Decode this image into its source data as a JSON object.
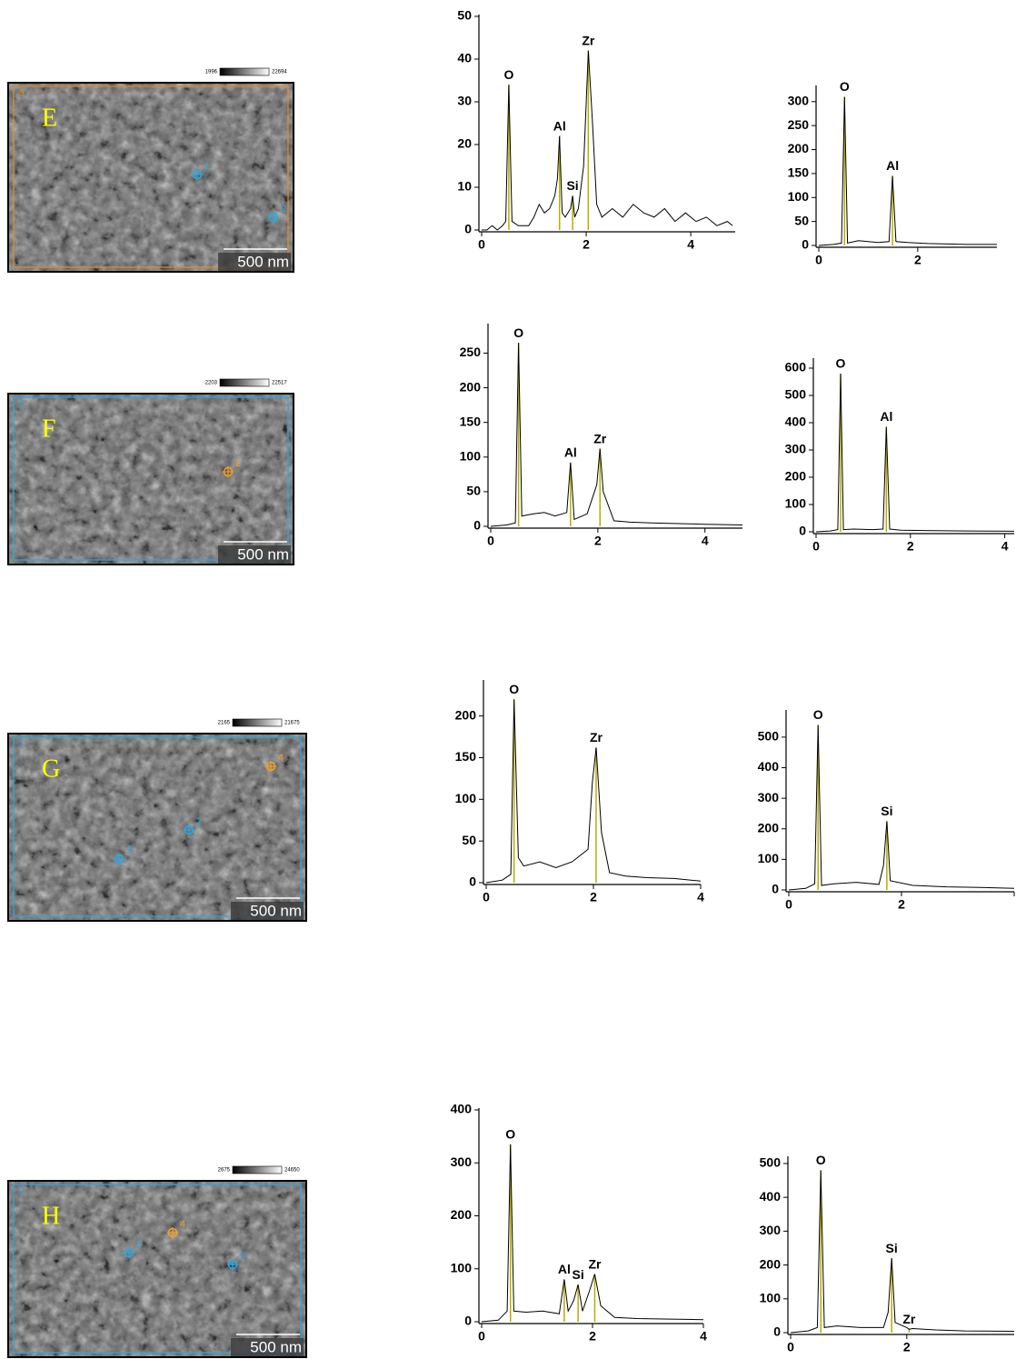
{
  "images": [
    {
      "letter": "E",
      "region": "3",
      "border": "#e0902a",
      "colorbar": [
        1996,
        22694
      ],
      "scale": "500 nm",
      "points": [
        {
          "label": "1",
          "color": "#2aa8e0"
        },
        {
          "label": "2",
          "color": "#2aa8e0"
        }
      ]
    },
    {
      "letter": "F",
      "region": "1",
      "border": "#2aa8e0",
      "colorbar": [
        2203,
        22517
      ],
      "scale": "500 nm",
      "points": [
        {
          "label": "2",
          "color": "#f0a020"
        }
      ]
    },
    {
      "letter": "G",
      "region": "1",
      "border": "#2aa8e0",
      "colorbar": [
        2165,
        21675
      ],
      "scale": "500 nm",
      "points": [
        {
          "label": "4",
          "color": "#f0a020"
        },
        {
          "label": "2",
          "color": "#2aa8e0"
        },
        {
          "label": "3",
          "color": "#2aa8e0"
        }
      ]
    },
    {
      "letter": "H",
      "region": "1",
      "border": "#2aa8e0",
      "colorbar": [
        2675,
        24650
      ],
      "scale": "500 nm",
      "points": [
        {
          "label": "2",
          "color": "#2aa8e0"
        },
        {
          "label": "4",
          "color": "#f0a020"
        },
        {
          "label": "3",
          "color": "#2aa8e0"
        }
      ]
    }
  ],
  "chart_data": [
    {
      "type": "line",
      "color": "#000000",
      "peak_color": "#b5ad00",
      "x": [
        0,
        0.1,
        0.2,
        0.3,
        0.4,
        0.46,
        0.52,
        0.58,
        0.7,
        0.9,
        1.0,
        1.1,
        1.2,
        1.3,
        1.4,
        1.45,
        1.49,
        1.54,
        1.6,
        1.7,
        1.74,
        1.78,
        1.85,
        1.95,
        2.04,
        2.12,
        2.2,
        2.3,
        2.5,
        2.7,
        2.9,
        3.1,
        3.3,
        3.5,
        3.7,
        3.9,
        4.1,
        4.3,
        4.5,
        4.7,
        4.8
      ],
      "values": [
        0,
        0,
        1,
        0,
        1,
        2,
        34,
        2,
        1,
        1,
        3,
        6,
        4,
        5,
        8,
        12,
        22,
        4,
        3,
        5,
        8,
        3,
        5,
        15,
        42,
        25,
        6,
        3,
        5,
        3,
        6,
        4,
        3,
        5,
        2,
        4,
        2,
        3,
        1,
        2,
        1
      ],
      "xlim": [
        0,
        4.85
      ],
      "ylim": [
        0,
        50
      ],
      "xticks": [
        0,
        2,
        4
      ],
      "yticks": [
        0,
        10,
        20,
        30,
        40,
        50
      ],
      "peaks": [
        {
          "label": "O",
          "x": 0.52,
          "value": 34
        },
        {
          "label": "Al",
          "x": 1.49,
          "value": 22
        },
        {
          "label": "Si",
          "x": 1.74,
          "value": 8
        },
        {
          "label": "Zr",
          "x": 2.04,
          "value": 42
        }
      ]
    },
    {
      "type": "line",
      "color": "#000000",
      "peak_color": "#b5ad00",
      "x": [
        0,
        0.3,
        0.46,
        0.52,
        0.58,
        0.8,
        1.2,
        1.42,
        1.49,
        1.56,
        1.8,
        2.2,
        2.6,
        3.0,
        3.6
      ],
      "values": [
        0,
        2,
        5,
        310,
        5,
        10,
        6,
        8,
        145,
        8,
        6,
        4,
        3,
        2,
        2
      ],
      "xlim": [
        0,
        3.6
      ],
      "ylim": [
        0,
        330
      ],
      "xticks": [
        0,
        2
      ],
      "yticks": [
        0,
        50,
        100,
        150,
        200,
        250,
        300
      ],
      "peaks": [
        {
          "label": "O",
          "x": 0.52,
          "value": 310
        },
        {
          "label": "Al",
          "x": 1.49,
          "value": 145
        }
      ]
    },
    {
      "type": "line",
      "color": "#000000",
      "peak_color": "#b5ad00",
      "x": [
        0,
        0.3,
        0.46,
        0.52,
        0.58,
        0.8,
        1.0,
        1.2,
        1.42,
        1.49,
        1.56,
        1.8,
        1.98,
        2.04,
        2.1,
        2.3,
        2.6,
        3.0,
        3.5,
        4.0,
        4.7
      ],
      "values": [
        0,
        2,
        5,
        265,
        15,
        18,
        20,
        15,
        20,
        92,
        10,
        18,
        60,
        112,
        50,
        8,
        6,
        5,
        4,
        3,
        2
      ],
      "xlim": [
        0,
        4.7
      ],
      "ylim": [
        0,
        290
      ],
      "xticks": [
        0,
        2,
        4
      ],
      "yticks": [
        0,
        50,
        100,
        150,
        200,
        250
      ],
      "peaks": [
        {
          "label": "O",
          "x": 0.52,
          "value": 265
        },
        {
          "label": "Al",
          "x": 1.49,
          "value": 92
        },
        {
          "label": "Zr",
          "x": 2.04,
          "value": 112
        }
      ]
    },
    {
      "type": "line",
      "color": "#000000",
      "peak_color": "#b5ad00",
      "x": [
        0,
        0.3,
        0.46,
        0.52,
        0.58,
        0.8,
        1.2,
        1.42,
        1.49,
        1.56,
        1.8,
        2.5,
        3.2,
        4.2
      ],
      "values": [
        0,
        3,
        8,
        580,
        8,
        10,
        8,
        10,
        385,
        10,
        6,
        4,
        3,
        2
      ],
      "xlim": [
        0,
        4.2
      ],
      "ylim": [
        0,
        630
      ],
      "xticks": [
        0,
        2,
        4
      ],
      "yticks": [
        0,
        100,
        200,
        300,
        400,
        500,
        600
      ],
      "peaks": [
        {
          "label": "O",
          "x": 0.52,
          "value": 580
        },
        {
          "label": "Al",
          "x": 1.49,
          "value": 385
        }
      ]
    },
    {
      "type": "line",
      "color": "#000000",
      "peak_color": "#b5ad00",
      "x": [
        0,
        0.3,
        0.46,
        0.52,
        0.6,
        0.7,
        1.0,
        1.3,
        1.6,
        1.9,
        1.98,
        2.05,
        2.15,
        2.3,
        2.6,
        3.0,
        3.5,
        4.0
      ],
      "values": [
        0,
        3,
        10,
        220,
        30,
        20,
        25,
        18,
        25,
        40,
        120,
        162,
        60,
        12,
        8,
        6,
        5,
        2
      ],
      "xlim": [
        0,
        4
      ],
      "ylim": [
        0,
        241
      ],
      "xticks": [
        0,
        2,
        4
      ],
      "yticks": [
        0,
        50,
        100,
        150,
        200
      ],
      "peaks": [
        {
          "label": "O",
          "x": 0.52,
          "value": 220
        },
        {
          "label": "Zr",
          "x": 2.05,
          "value": 162
        }
      ]
    },
    {
      "type": "line",
      "color": "#000000",
      "peak_color": "#b5ad00",
      "x": [
        0,
        0.3,
        0.46,
        0.52,
        0.58,
        0.8,
        1.2,
        1.6,
        1.68,
        1.74,
        1.8,
        2.2,
        2.8,
        3.4,
        4.0
      ],
      "values": [
        0,
        5,
        20,
        540,
        15,
        20,
        25,
        18,
        80,
        225,
        30,
        15,
        10,
        8,
        5
      ],
      "xlim": [
        0,
        4
      ],
      "ylim": [
        0,
        583
      ],
      "xticks": [
        0,
        2,
        4
      ],
      "yticks": [
        0,
        100,
        200,
        300,
        400,
        500
      ],
      "peaks": [
        {
          "label": "O",
          "x": 0.52,
          "value": 540
        },
        {
          "label": "Si",
          "x": 1.74,
          "value": 225
        }
      ]
    },
    {
      "type": "line",
      "color": "#000000",
      "peak_color": "#b5ad00",
      "x": [
        0,
        0.3,
        0.46,
        0.52,
        0.58,
        0.8,
        1.1,
        1.4,
        1.49,
        1.56,
        1.66,
        1.74,
        1.82,
        1.95,
        2.04,
        2.15,
        2.4,
        2.8,
        3.4,
        4.0
      ],
      "values": [
        0,
        3,
        20,
        335,
        20,
        18,
        20,
        15,
        80,
        20,
        40,
        70,
        20,
        60,
        90,
        30,
        8,
        6,
        5,
        4
      ],
      "xlim": [
        0,
        4
      ],
      "ylim": [
        0,
        400
      ],
      "xticks": [
        0,
        2,
        4
      ],
      "yticks": [
        0,
        100,
        200,
        300,
        400
      ],
      "peaks": [
        {
          "label": "O",
          "x": 0.52,
          "value": 335
        },
        {
          "label": "Al",
          "x": 1.49,
          "value": 80
        },
        {
          "label": "Si",
          "x": 1.74,
          "value": 70
        },
        {
          "label": "Zr",
          "x": 2.04,
          "value": 90
        }
      ]
    },
    {
      "type": "line",
      "color": "#000000",
      "peak_color": "#b5ad00",
      "x": [
        0,
        0.3,
        0.46,
        0.52,
        0.58,
        0.8,
        1.2,
        1.6,
        1.68,
        1.74,
        1.8,
        2.0,
        2.04,
        2.1,
        2.5,
        3.0,
        3.85
      ],
      "values": [
        0,
        5,
        15,
        480,
        15,
        20,
        15,
        15,
        60,
        220,
        30,
        15,
        10,
        12,
        8,
        5,
        4
      ],
      "xlim": [
        0,
        3.85
      ],
      "ylim": [
        0,
        516
      ],
      "xticks": [
        0,
        2
      ],
      "yticks": [
        0,
        100,
        200,
        300,
        400,
        500
      ],
      "peaks": [
        {
          "label": "O",
          "x": 0.52,
          "value": 480
        },
        {
          "label": "Si",
          "x": 1.74,
          "value": 220
        },
        {
          "label": "Zr",
          "x": 2.04,
          "value": 10
        }
      ]
    }
  ]
}
